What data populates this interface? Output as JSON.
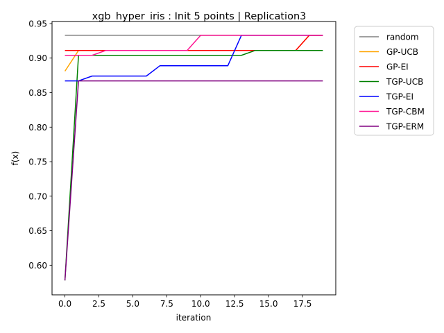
{
  "chart_data": {
    "type": "line",
    "title": "xgb_hyper_iris : Init 5 points | Replication3",
    "xlabel": "iteration",
    "ylabel": "f(x)",
    "xlim": [
      -0.95,
      19.95
    ],
    "ylim": [
      0.5571,
      0.953
    ],
    "xticks": [
      0.0,
      2.5,
      5.0,
      7.5,
      10.0,
      12.5,
      15.0,
      17.5
    ],
    "xtick_labels": [
      "0.0",
      "2.5",
      "5.0",
      "7.5",
      "10.0",
      "12.5",
      "15.0",
      "17.5"
    ],
    "yticks": [
      0.6,
      0.65,
      0.7,
      0.75,
      0.8,
      0.85,
      0.9,
      0.95
    ],
    "ytick_labels": [
      "0.60",
      "0.65",
      "0.70",
      "0.75",
      "0.80",
      "0.85",
      "0.90",
      "0.95"
    ],
    "grid": false,
    "legend_position": "outside-top-right",
    "x": [
      0,
      1,
      2,
      3,
      4,
      5,
      6,
      7,
      8,
      9,
      10,
      11,
      12,
      13,
      14,
      15,
      16,
      17,
      18,
      19
    ],
    "series": [
      {
        "name": "random",
        "color": "#808080",
        "values": [
          0.933,
          0.933,
          0.933,
          0.933,
          0.933,
          0.933,
          0.933,
          0.933,
          0.933,
          0.933,
          0.933,
          0.933,
          0.933,
          0.933,
          0.933,
          0.933,
          0.933,
          0.933,
          0.933,
          0.933
        ]
      },
      {
        "name": "GP-UCB",
        "color": "#ffa500",
        "values": [
          0.881,
          0.911,
          0.911,
          0.911,
          0.911,
          0.911,
          0.911,
          0.911,
          0.911,
          0.911,
          0.911,
          0.911,
          0.911,
          0.911,
          0.911,
          0.911,
          0.911,
          0.911,
          0.933,
          0.933
        ]
      },
      {
        "name": "GP-EI",
        "color": "#ff0000",
        "values": [
          0.911,
          0.911,
          0.911,
          0.911,
          0.911,
          0.911,
          0.911,
          0.911,
          0.911,
          0.911,
          0.911,
          0.911,
          0.911,
          0.911,
          0.911,
          0.911,
          0.911,
          0.911,
          0.933,
          0.933
        ]
      },
      {
        "name": "TGP-UCB",
        "color": "#008000",
        "values": [
          0.578,
          0.904,
          0.904,
          0.904,
          0.904,
          0.904,
          0.904,
          0.904,
          0.904,
          0.904,
          0.904,
          0.904,
          0.904,
          0.904,
          0.911,
          0.911,
          0.911,
          0.911,
          0.911,
          0.911
        ]
      },
      {
        "name": "TGP-EI",
        "color": "#0000ff",
        "values": [
          0.867,
          0.867,
          0.874,
          0.874,
          0.874,
          0.874,
          0.874,
          0.889,
          0.889,
          0.889,
          0.889,
          0.889,
          0.889,
          0.933,
          0.933,
          0.933,
          0.933,
          0.933,
          0.933,
          0.933
        ]
      },
      {
        "name": "TGP-CBM",
        "color": "#ff1493",
        "values": [
          0.904,
          0.904,
          0.904,
          0.911,
          0.911,
          0.911,
          0.911,
          0.911,
          0.911,
          0.911,
          0.933,
          0.933,
          0.933,
          0.933,
          0.933,
          0.933,
          0.933,
          0.933,
          0.933,
          0.933
        ]
      },
      {
        "name": "TGP-ERM",
        "color": "#800080",
        "values": [
          0.578,
          0.867,
          0.867,
          0.867,
          0.867,
          0.867,
          0.867,
          0.867,
          0.867,
          0.867,
          0.867,
          0.867,
          0.867,
          0.867,
          0.867,
          0.867,
          0.867,
          0.867,
          0.867,
          0.867
        ]
      }
    ]
  }
}
